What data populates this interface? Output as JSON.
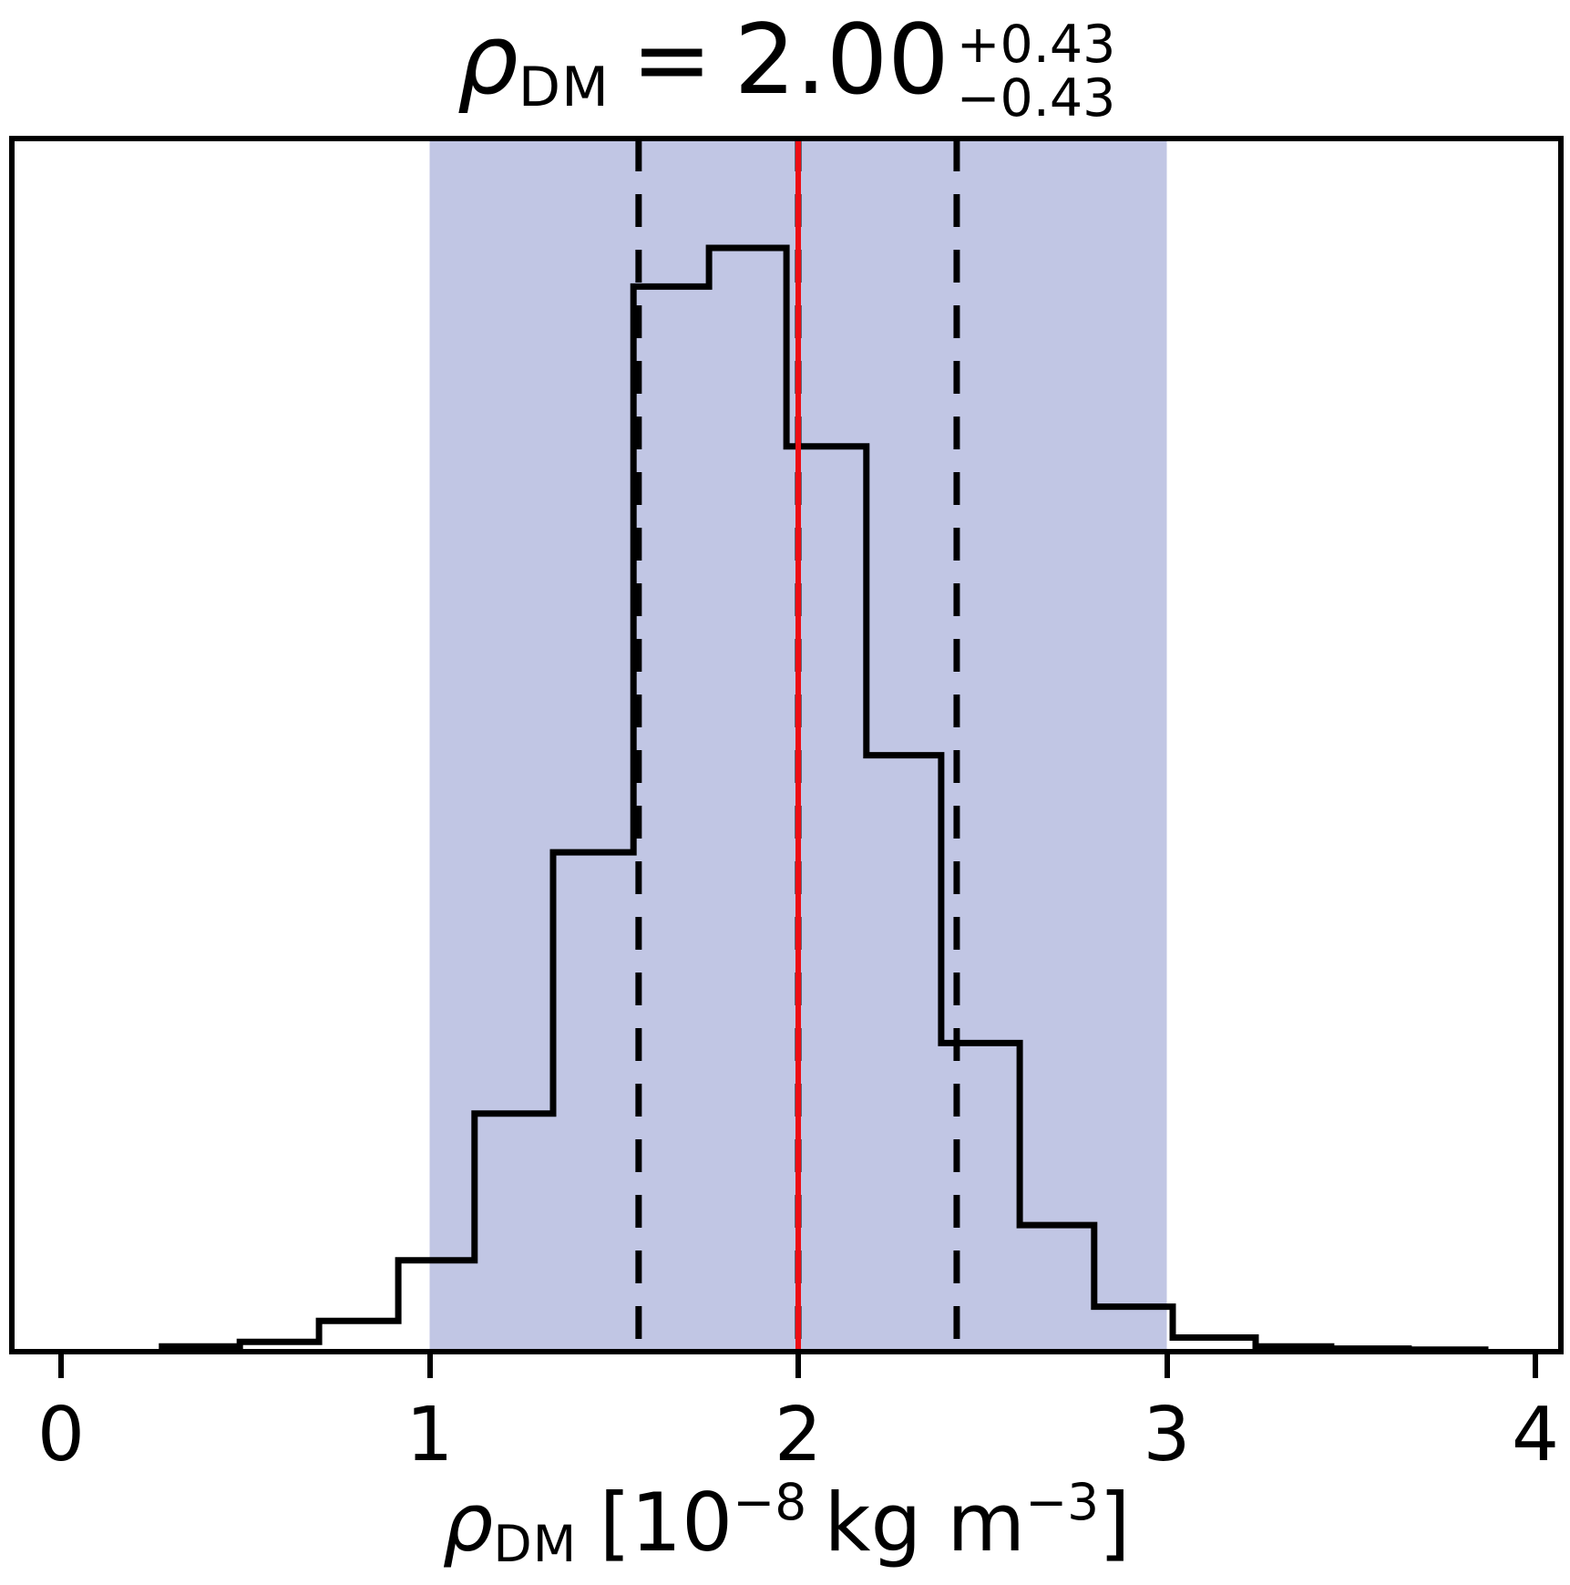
{
  "title": {
    "rho": "ρ",
    "sub": "DM",
    "eq": "=",
    "value": "2.00",
    "upper": "+0.43",
    "lower": "−0.43"
  },
  "xlabel": {
    "rho": "ρ",
    "sub": "DM",
    "open": "[10",
    "exp1": "−8",
    "mid": "kg m",
    "exp2": "−3",
    "close": "]"
  },
  "chart_data": {
    "type": "histogram-step",
    "title": "ρ_DM = 2.00 +0.43 −0.43",
    "xlabel": "ρ_DM [10⁻⁸ kg m⁻³]",
    "x_ticks": [
      "0",
      "1",
      "2",
      "3",
      "4"
    ],
    "x_tick_values": [
      0,
      1,
      2,
      3,
      4
    ],
    "xlim": [
      -0.134,
      4.069
    ],
    "ylim_norm": [
      0,
      1.1
    ],
    "grid": "off",
    "legend": "none",
    "bin_edges": [
      0.274,
      0.485,
      0.7,
      0.915,
      1.122,
      1.335,
      1.553,
      1.758,
      1.968,
      2.185,
      2.388,
      2.601,
      2.803,
      3.016,
      3.241,
      3.446,
      3.656,
      3.864
    ],
    "bin_heights_norm": [
      0.004,
      0.008,
      0.027,
      0.082,
      0.215,
      0.452,
      0.965,
      1.0,
      0.82,
      0.54,
      0.279,
      0.114,
      0.04,
      0.012,
      0.004,
      0.002,
      0.001
    ],
    "truth_x": 2.0,
    "quantiles_x": [
      1.567,
      2.0,
      2.43
    ],
    "band_x": [
      1.0,
      3.0
    ],
    "colors": {
      "band": "#c1c6e4",
      "histogram": "#000000",
      "quantile_line": "#000000",
      "truth_line": "#ed0d14",
      "background": "#ffffff"
    }
  }
}
